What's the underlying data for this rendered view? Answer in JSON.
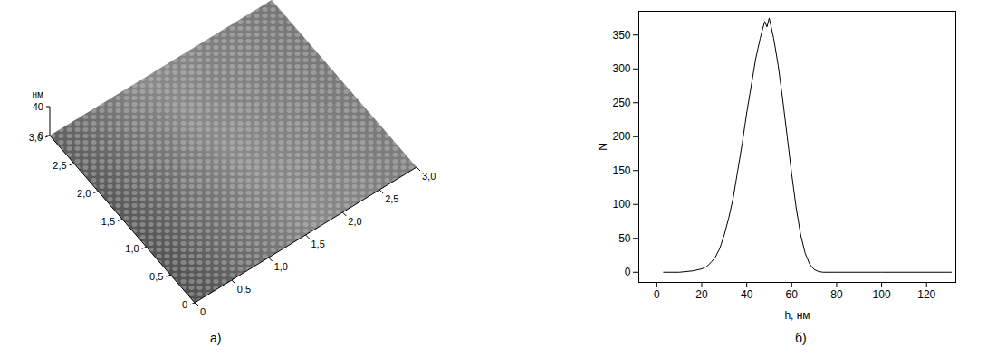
{
  "chart_data": [
    {
      "type": "surface3d",
      "caption": "а)",
      "zlabel": "нм",
      "xlim": [
        0,
        3.0
      ],
      "xticks": [
        0,
        {
          "value": 0.5,
          "label": "0,5"
        },
        {
          "value": 1.0,
          "label": "1,0"
        },
        {
          "value": 1.5,
          "label": "1,5"
        },
        {
          "value": 2.0,
          "label": "2,0"
        },
        {
          "value": 2.5,
          "label": "2,5"
        },
        {
          "value": 3.0,
          "label": "3,0"
        }
      ],
      "ylim": [
        0,
        3.0
      ],
      "yticks": [
        0,
        {
          "value": 0.5,
          "label": "0,5"
        },
        {
          "value": 1.0,
          "label": "1,0"
        },
        {
          "value": 1.5,
          "label": "1,5"
        },
        {
          "value": 2.0,
          "label": "2,0"
        },
        {
          "value": 2.5,
          "label": "2,5"
        },
        {
          "value": 3.0,
          "label": "3,0"
        }
      ],
      "zlim": [
        0,
        40
      ],
      "zticks": [
        0,
        40
      ]
    },
    {
      "type": "line",
      "caption": "б)",
      "xlabel": "h, нм",
      "ylabel": "N",
      "color": "#000000",
      "x": [
        3,
        10,
        16,
        20,
        22,
        24,
        26,
        28,
        30,
        32,
        34,
        36,
        38,
        40,
        42,
        44,
        45,
        46,
        47,
        48,
        49,
        50,
        51,
        52,
        54,
        56,
        58,
        60,
        62,
        64,
        66,
        68,
        70,
        72,
        74,
        80,
        100,
        131
      ],
      "values": [
        0,
        0,
        2,
        5,
        8,
        14,
        22,
        35,
        55,
        80,
        110,
        150,
        190,
        235,
        275,
        315,
        330,
        345,
        358,
        370,
        362,
        375,
        360,
        345,
        305,
        255,
        200,
        145,
        95,
        55,
        28,
        12,
        4,
        1,
        0,
        0,
        0,
        0
      ],
      "xlim": [
        -8,
        133
      ],
      "xticks": [
        0,
        20,
        40,
        60,
        80,
        100,
        120
      ],
      "ylim": [
        -15,
        385
      ],
      "yticks": [
        0,
        50,
        100,
        150,
        200,
        250,
        300,
        350
      ]
    }
  ]
}
